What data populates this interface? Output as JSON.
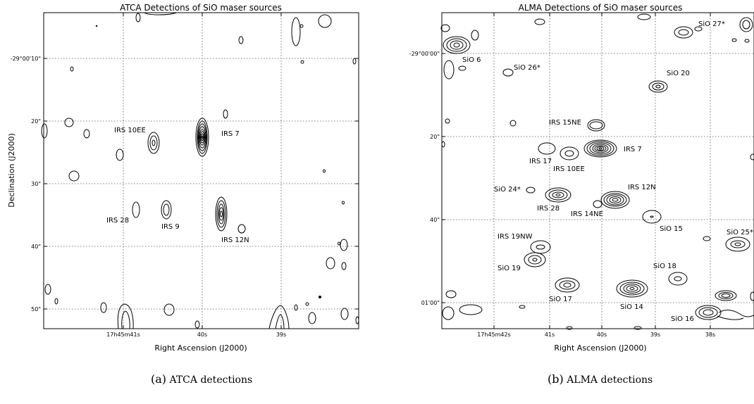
{
  "figure_a": {
    "title": "ATCA Detections of SiO maser sources",
    "xlabel": "Right Ascension (J2000)",
    "ylabel": "Declination (J2000)",
    "xticks": [
      "17h45m41s",
      "40s",
      "39s"
    ],
    "yticks": [
      "-29°00'10\"",
      "20\"",
      "30\"",
      "40\"",
      "50\""
    ],
    "sources": [
      "IRS 10EE",
      "IRS 7",
      "IRS 28",
      "IRS 9",
      "IRS 12N"
    ],
    "caption_tag": "(a)",
    "caption_text": "ATCA detections"
  },
  "figure_b": {
    "title": "ALMA Detections of SiO maser sources",
    "xlabel": "Right Ascension (J2000)",
    "xticks": [
      "17h45m42s",
      "41s",
      "40s",
      "39s",
      "38s"
    ],
    "yticks": [
      "-29°00'00\"",
      "20\"",
      "40\"",
      "01'00\""
    ],
    "sources": [
      "SiO 27*",
      "SiO 6",
      "SiO 26*",
      "SiO 20",
      "IRS 15NE",
      "IRS 7",
      "IRS 17",
      "IRS 10EE",
      "IRS 12N",
      "SiO 24*",
      "IRS 28",
      "IRS 14NE",
      "SiO 15",
      "SiO 25*",
      "IRS 19NW",
      "SiO 19",
      "SiO 18",
      "SiO 17",
      "SiO 14",
      "SiO 16"
    ],
    "caption_tag": "(b)",
    "caption_text": "ALMA detections"
  }
}
